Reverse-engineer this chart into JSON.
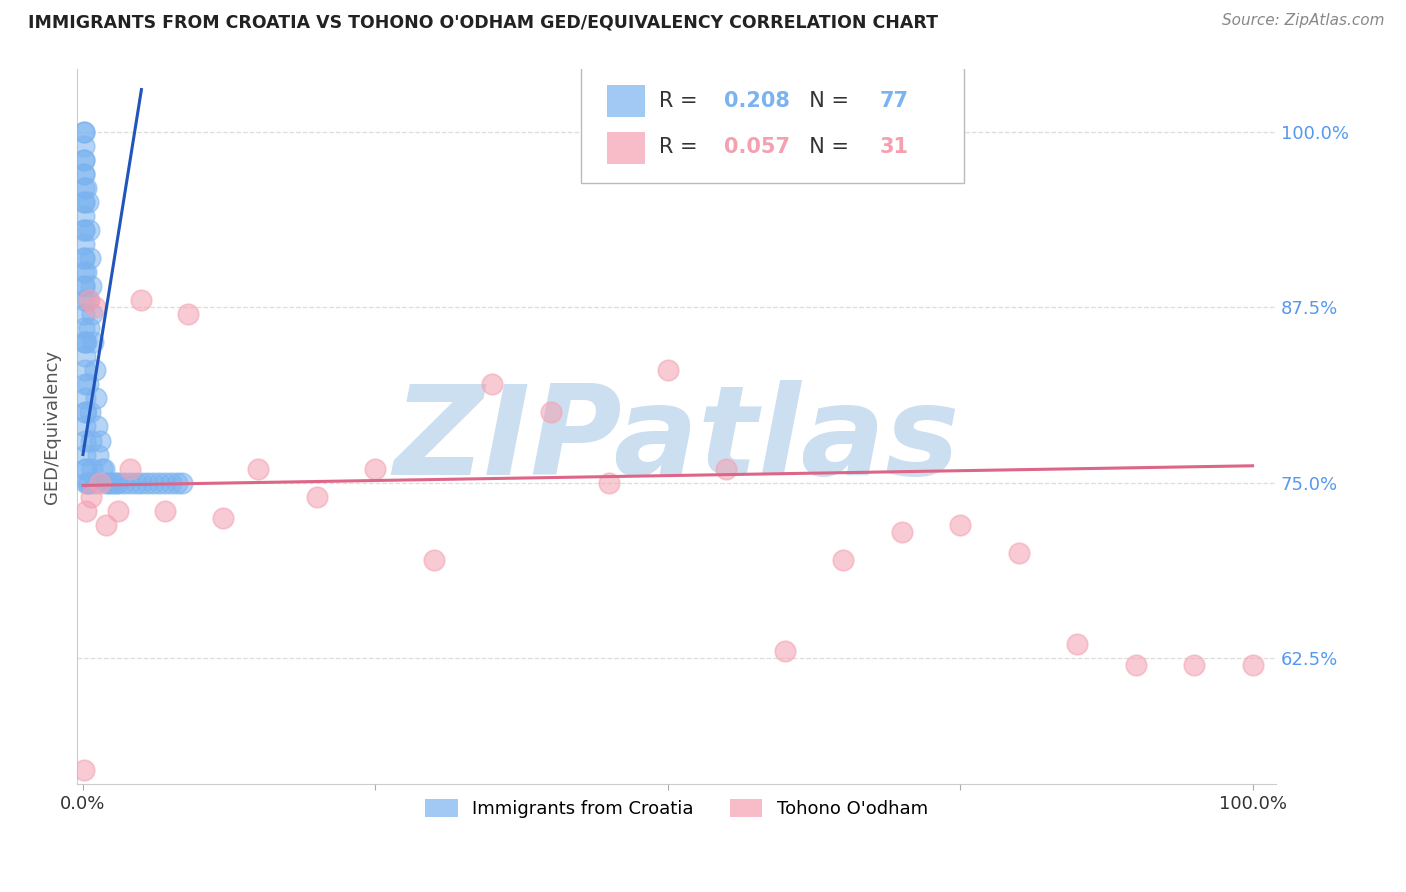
{
  "title": "IMMIGRANTS FROM CROATIA VS TOHONO O'ODHAM GED/EQUIVALENCY CORRELATION CHART",
  "source": "Source: ZipAtlas.com",
  "ylabel": "GED/Equivalency",
  "ytick_labels": [
    "62.5%",
    "75.0%",
    "87.5%",
    "100.0%"
  ],
  "ytick_values": [
    0.625,
    0.75,
    0.875,
    1.0
  ],
  "xlim": [
    -0.005,
    1.02
  ],
  "ylim": [
    0.535,
    1.045
  ],
  "background_color": "#ffffff",
  "watermark": "ZIPatlas",
  "watermark_color": "#ccdff0",
  "grid_color": "#dddddd",
  "croatia_color": "#7ab3ef",
  "tohono_color": "#f4a0b0",
  "croatia_line_color": "#2255bb",
  "tohono_line_color": "#dd6688",
  "croatia_R": 0.208,
  "croatia_N": 77,
  "tohono_R": 0.057,
  "tohono_N": 31,
  "ytick_color": "#5599ee",
  "xtick_color": "#333333",
  "croatia_line_x": [
    0.0,
    0.05
  ],
  "croatia_line_y": [
    0.77,
    1.03
  ],
  "tohono_line_x": [
    0.0,
    1.0
  ],
  "tohono_line_y": [
    0.748,
    0.762
  ],
  "croatia_x": [
    0.001,
    0.001,
    0.001,
    0.001,
    0.001,
    0.001,
    0.001,
    0.001,
    0.001,
    0.001,
    0.001,
    0.001,
    0.001,
    0.001,
    0.001,
    0.001,
    0.001,
    0.001,
    0.001,
    0.001,
    0.001,
    0.001,
    0.001,
    0.002,
    0.002,
    0.002,
    0.002,
    0.002,
    0.002,
    0.002,
    0.002,
    0.002,
    0.002,
    0.003,
    0.003,
    0.003,
    0.003,
    0.003,
    0.003,
    0.004,
    0.004,
    0.004,
    0.004,
    0.005,
    0.005,
    0.005,
    0.006,
    0.006,
    0.007,
    0.007,
    0.008,
    0.008,
    0.009,
    0.01,
    0.01,
    0.011,
    0.012,
    0.013,
    0.015,
    0.016,
    0.018,
    0.02,
    0.022,
    0.025,
    0.028,
    0.03,
    0.035,
    0.04,
    0.045,
    0.05,
    0.055,
    0.06,
    0.065,
    0.07,
    0.075,
    0.08,
    0.085
  ],
  "croatia_y": [
    1.0,
    1.0,
    0.99,
    0.98,
    0.98,
    0.97,
    0.97,
    0.96,
    0.95,
    0.95,
    0.94,
    0.93,
    0.93,
    0.92,
    0.91,
    0.91,
    0.9,
    0.89,
    0.89,
    0.88,
    0.87,
    0.86,
    0.85,
    0.85,
    0.84,
    0.83,
    0.82,
    0.81,
    0.8,
    0.79,
    0.78,
    0.77,
    0.76,
    0.96,
    0.9,
    0.85,
    0.8,
    0.76,
    0.75,
    0.95,
    0.88,
    0.82,
    0.75,
    0.93,
    0.86,
    0.75,
    0.91,
    0.8,
    0.89,
    0.78,
    0.87,
    0.76,
    0.85,
    0.83,
    0.75,
    0.81,
    0.79,
    0.77,
    0.78,
    0.76,
    0.76,
    0.75,
    0.75,
    0.75,
    0.75,
    0.75,
    0.75,
    0.75,
    0.75,
    0.75,
    0.75,
    0.75,
    0.75,
    0.75,
    0.75,
    0.75,
    0.75
  ],
  "tohono_x": [
    0.001,
    0.003,
    0.005,
    0.007,
    0.01,
    0.015,
    0.02,
    0.03,
    0.04,
    0.05,
    0.07,
    0.09,
    0.12,
    0.15,
    0.2,
    0.25,
    0.3,
    0.35,
    0.4,
    0.45,
    0.5,
    0.55,
    0.6,
    0.65,
    0.7,
    0.75,
    0.8,
    0.85,
    0.9,
    0.95,
    1.0
  ],
  "tohono_y": [
    0.545,
    0.73,
    0.88,
    0.74,
    0.875,
    0.75,
    0.72,
    0.73,
    0.76,
    0.88,
    0.73,
    0.87,
    0.725,
    0.76,
    0.74,
    0.76,
    0.695,
    0.82,
    0.8,
    0.75,
    0.83,
    0.76,
    0.63,
    0.695,
    0.715,
    0.72,
    0.7,
    0.635,
    0.62,
    0.62,
    0.62
  ]
}
